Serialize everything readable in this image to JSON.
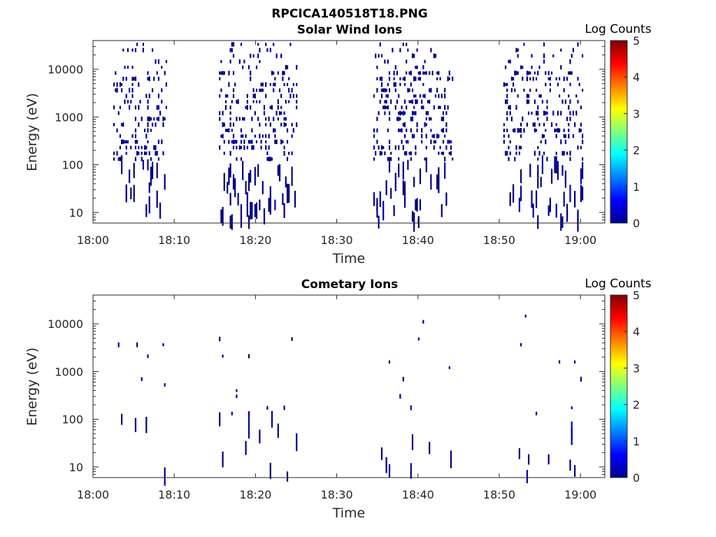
{
  "figure_title": "RPCICA140518T18.PNG",
  "colorbar": {
    "label": "Log Counts",
    "ticks": [
      "0",
      "1",
      "2",
      "3",
      "4",
      "5"
    ],
    "range": [
      0,
      5
    ]
  },
  "chart_data": [
    {
      "type": "heatmap",
      "title": "Solar Wind Ions",
      "xlabel": "Time",
      "ylabel": "Energy (eV)",
      "x_ticks": [
        "18:00",
        "18:10",
        "18:20",
        "18:30",
        "18:40",
        "18:50",
        "19:00"
      ],
      "x_tick_minutes": [
        0,
        10,
        20,
        30,
        40,
        50,
        60
      ],
      "xlim_minutes": [
        0,
        63
      ],
      "yscale": "log",
      "y_ticks": [
        "10",
        "100",
        "1000",
        "10000"
      ],
      "y_tick_values": [
        10,
        100,
        1000,
        10000
      ],
      "ylim": [
        6,
        40000
      ],
      "activity_intervals_minutes": [
        [
          2.5,
          9.0
        ],
        [
          15.5,
          25.0
        ],
        [
          34.5,
          44.3
        ],
        [
          50.5,
          60.2
        ]
      ],
      "value_range_log_counts": [
        0,
        1
      ]
    },
    {
      "type": "heatmap",
      "title": "Cometary Ions",
      "xlabel": "Time",
      "ylabel": "Energy (eV)",
      "x_ticks": [
        "18:00",
        "18:10",
        "18:20",
        "18:30",
        "18:40",
        "18:50",
        "19:00"
      ],
      "x_tick_minutes": [
        0,
        10,
        20,
        30,
        40,
        50,
        60
      ],
      "xlim_minutes": [
        0,
        63
      ],
      "yscale": "log",
      "y_ticks": [
        "10",
        "100",
        "1000",
        "10000"
      ],
      "y_tick_values": [
        10,
        100,
        1000,
        10000
      ],
      "ylim": [
        6,
        40000
      ],
      "activity_intervals_minutes": [
        [
          2.5,
          9.0
        ],
        [
          15.5,
          25.0
        ],
        [
          34.5,
          44.3
        ],
        [
          50.5,
          60.2
        ]
      ],
      "value_range_log_counts": [
        0,
        1
      ]
    }
  ]
}
